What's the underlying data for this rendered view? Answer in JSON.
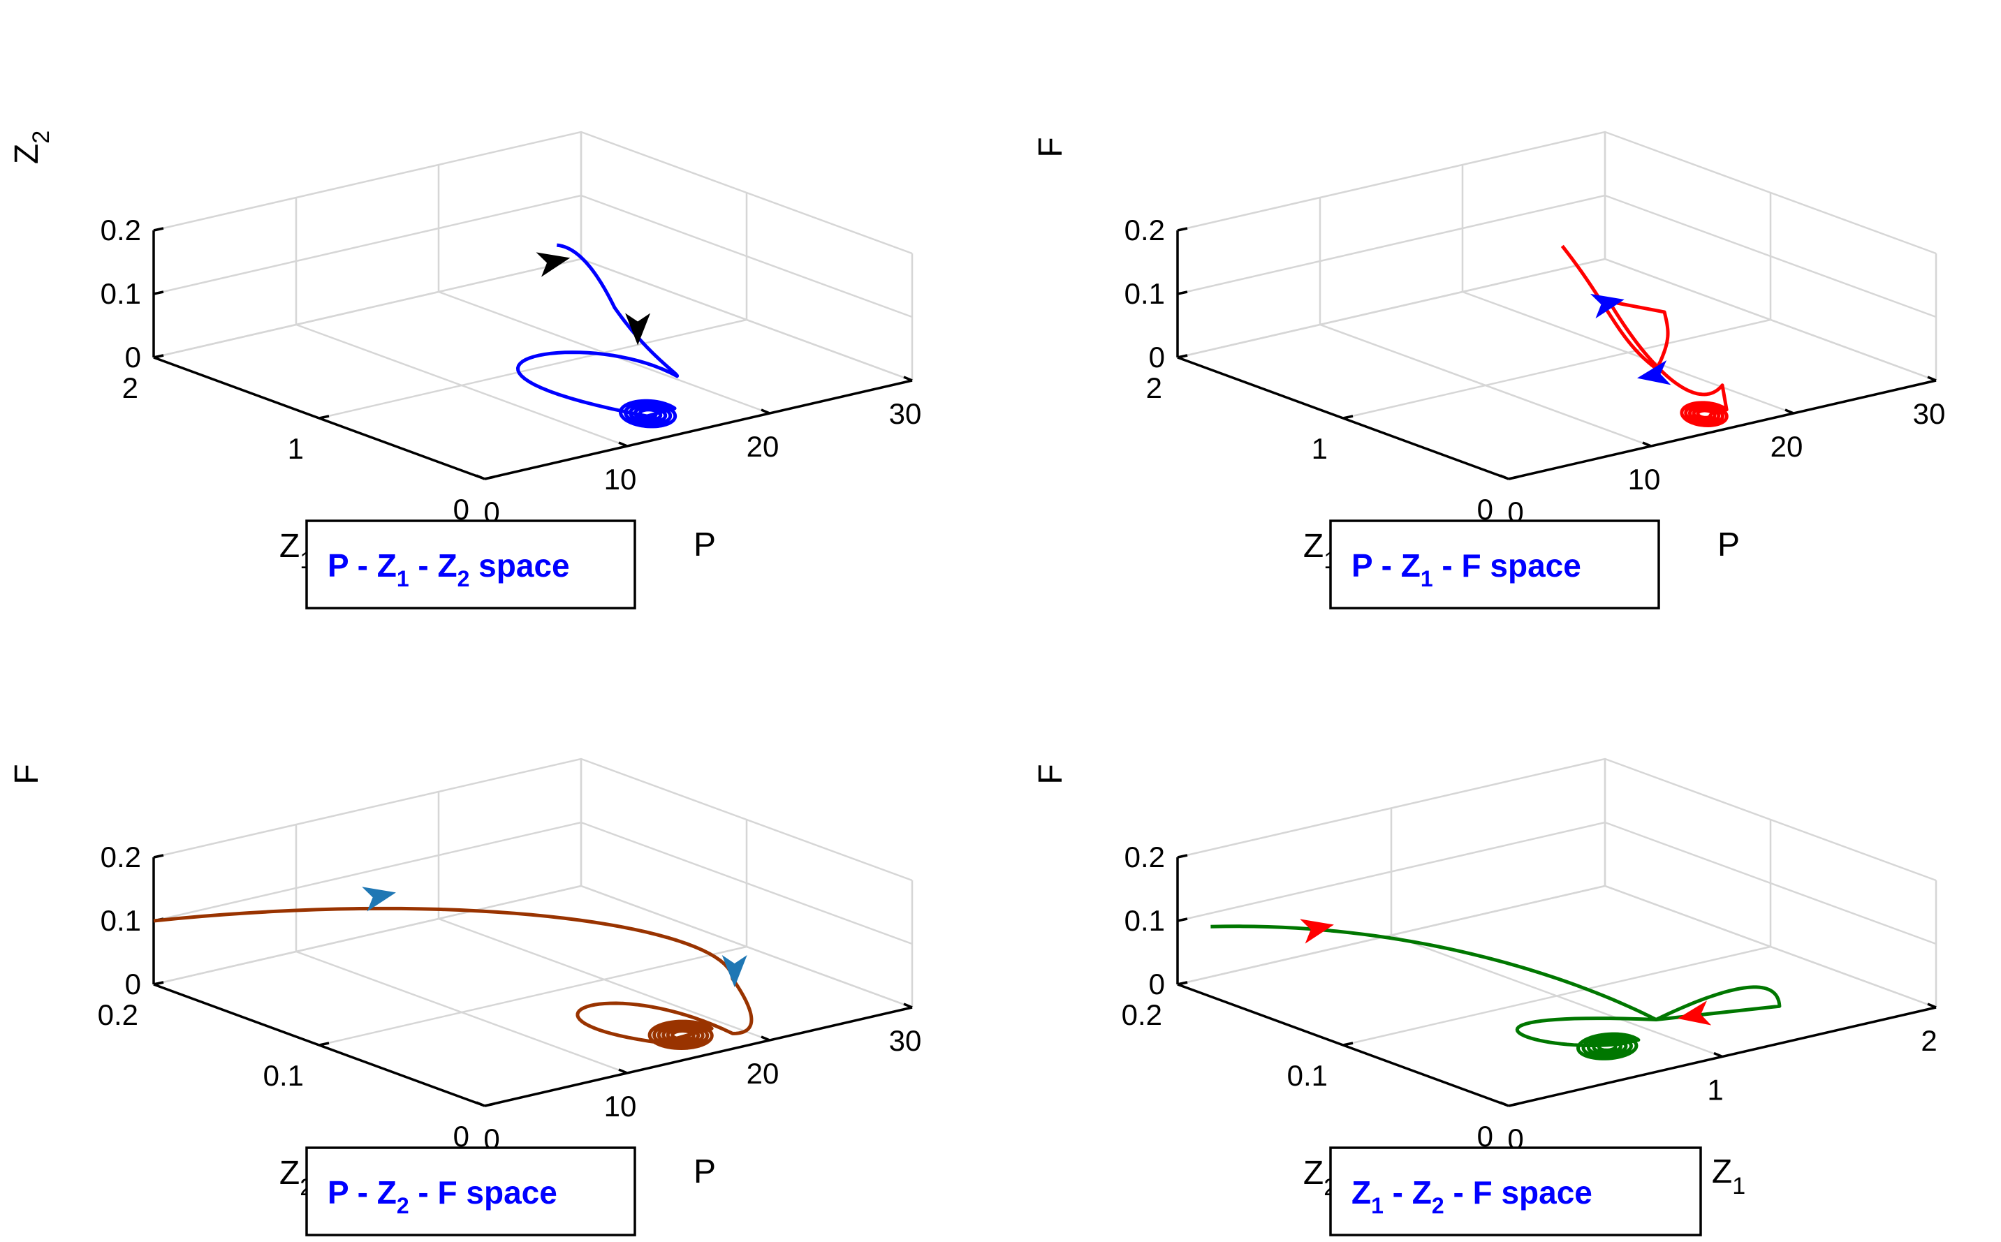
{
  "chart_data": [
    {
      "type": "line3d",
      "title": "P - Z1 - Z2 space",
      "label_color": "#0000ff",
      "line_color": "#0000ff",
      "arrow_color": "#000000",
      "axes": {
        "x": {
          "label": "P",
          "ticks": [
            "0",
            "10",
            "20",
            "30"
          ],
          "range": [
            0,
            30
          ]
        },
        "y": {
          "label": "Z",
          "label_sub": "1",
          "ticks": [
            "0",
            "1",
            "2"
          ],
          "range": [
            0,
            2
          ]
        },
        "z": {
          "label": "Z",
          "label_sub": "2",
          "ticks": [
            "0",
            "0.1",
            "0.2"
          ],
          "range": [
            0,
            0.2
          ]
        }
      },
      "box_label": {
        "parts": [
          "P - Z",
          "1",
          " - Z",
          "2",
          " space"
        ]
      }
    },
    {
      "type": "line3d",
      "title": "P - Z1 - F space",
      "label_color": "#0000ff",
      "line_color": "#ff0000",
      "arrow_color": "#0000ff",
      "axes": {
        "x": {
          "label": "P",
          "ticks": [
            "0",
            "10",
            "20",
            "30"
          ],
          "range": [
            0,
            30
          ]
        },
        "y": {
          "label": "Z",
          "label_sub": "1",
          "ticks": [
            "0",
            "1",
            "2"
          ],
          "range": [
            0,
            2
          ]
        },
        "z": {
          "label": "F",
          "ticks": [
            "0",
            "0.1",
            "0.2"
          ],
          "range": [
            0,
            0.2
          ]
        }
      },
      "box_label": {
        "parts": [
          "P - Z",
          "1",
          " - F space"
        ]
      }
    },
    {
      "type": "line3d",
      "title": "P - Z2 - F space",
      "label_color": "#0000ff",
      "line_color": "#993300",
      "arrow_color": "#1f77b4",
      "axes": {
        "x": {
          "label": "P",
          "ticks": [
            "0",
            "10",
            "20",
            "30"
          ],
          "range": [
            0,
            30
          ]
        },
        "y": {
          "label": "Z",
          "label_sub": "2",
          "ticks": [
            "0",
            "0.1",
            "0.2"
          ],
          "range": [
            0,
            0.2
          ]
        },
        "z": {
          "label": "F",
          "ticks": [
            "0",
            "0.1",
            "0.2"
          ],
          "range": [
            0,
            0.2
          ]
        }
      },
      "box_label": {
        "parts": [
          "P - Z",
          "2",
          " - F space"
        ]
      }
    },
    {
      "type": "line3d",
      "title": "Z1 - Z2 - F space",
      "label_color": "#0000ff",
      "line_color": "#007700",
      "arrow_color": "#ff0000",
      "axes": {
        "x": {
          "label": "Z",
          "label_sub": "1",
          "ticks": [
            "0",
            "1",
            "2"
          ],
          "range": [
            0,
            2
          ]
        },
        "y": {
          "label": "Z",
          "label_sub": "2",
          "ticks": [
            "0",
            "0.1",
            "0.2"
          ],
          "range": [
            0,
            0.2
          ]
        },
        "z": {
          "label": "F",
          "ticks": [
            "0",
            "0.1",
            "0.2"
          ],
          "range": [
            0,
            0.2
          ]
        }
      },
      "box_label": {
        "parts": [
          "Z",
          "1",
          " - Z",
          "2",
          " - F space"
        ]
      }
    }
  ]
}
